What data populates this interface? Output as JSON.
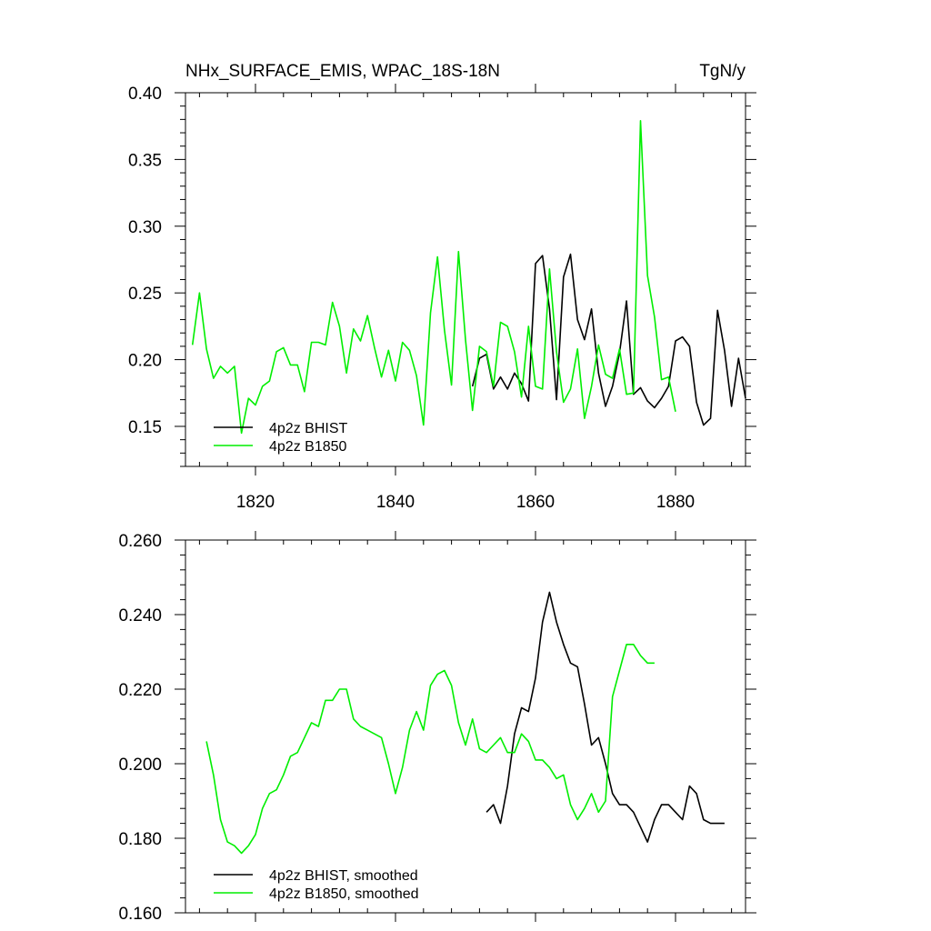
{
  "header": {
    "title": "NHx_SURFACE_EMIS, WPAC_18S-18N",
    "units": "TgN/y"
  },
  "colors": {
    "bhist": "#000000",
    "b1850": "#00ee00"
  },
  "chart_data": [
    {
      "type": "line",
      "title": "NHx_SURFACE_EMIS, WPAC_18S-18N",
      "units": "TgN/y",
      "xlim": [
        1810,
        1890
      ],
      "ylim": [
        0.12,
        0.4
      ],
      "grid": false,
      "legend_position": "bottom-left",
      "x_ticks": [
        1820,
        1840,
        1860,
        1880
      ],
      "y_ticks": [
        0.15,
        0.2,
        0.25,
        0.3,
        0.35,
        0.4
      ],
      "x_tick_labels": [
        "1820",
        "1840",
        "1860",
        "1880"
      ],
      "y_tick_labels": [
        "0.15",
        "0.20",
        "0.25",
        "0.30",
        "0.35",
        "0.40"
      ],
      "series": [
        {
          "name": "4p2z BHIST",
          "color": "#000000",
          "x": [
            1851,
            1852,
            1853,
            1854,
            1855,
            1856,
            1857,
            1858,
            1859,
            1860,
            1861,
            1862,
            1863,
            1864,
            1865,
            1866,
            1867,
            1868,
            1869,
            1870,
            1871,
            1872,
            1873,
            1874,
            1875,
            1876,
            1877,
            1878,
            1879,
            1880,
            1881,
            1882,
            1883,
            1884,
            1885,
            1886,
            1887,
            1888,
            1889,
            1890
          ],
          "y": [
            0.18,
            0.201,
            0.204,
            0.178,
            0.187,
            0.178,
            0.19,
            0.182,
            0.169,
            0.272,
            0.278,
            0.238,
            0.17,
            0.262,
            0.279,
            0.23,
            0.215,
            0.238,
            0.19,
            0.165,
            0.18,
            0.205,
            0.244,
            0.174,
            0.179,
            0.169,
            0.164,
            0.171,
            0.18,
            0.214,
            0.217,
            0.21,
            0.168,
            0.151,
            0.156,
            0.237,
            0.207,
            0.165,
            0.201,
            0.171
          ]
        },
        {
          "name": "4p2z B1850",
          "color": "#00ee00",
          "x": [
            1811,
            1812,
            1813,
            1814,
            1815,
            1816,
            1817,
            1818,
            1819,
            1820,
            1821,
            1822,
            1823,
            1824,
            1825,
            1826,
            1827,
            1828,
            1829,
            1830,
            1831,
            1832,
            1833,
            1834,
            1835,
            1836,
            1837,
            1838,
            1839,
            1840,
            1841,
            1842,
            1843,
            1844,
            1845,
            1846,
            1847,
            1848,
            1849,
            1850,
            1851,
            1852,
            1853,
            1854,
            1855,
            1856,
            1857,
            1858,
            1859,
            1860,
            1861,
            1862,
            1863,
            1864,
            1865,
            1866,
            1867,
            1868,
            1869,
            1870,
            1871,
            1872,
            1873,
            1874,
            1875,
            1876,
            1877,
            1878,
            1879,
            1880
          ],
          "y": [
            0.211,
            0.25,
            0.208,
            0.186,
            0.195,
            0.19,
            0.195,
            0.145,
            0.171,
            0.166,
            0.18,
            0.184,
            0.206,
            0.209,
            0.196,
            0.196,
            0.176,
            0.213,
            0.213,
            0.211,
            0.243,
            0.225,
            0.19,
            0.223,
            0.214,
            0.233,
            0.209,
            0.187,
            0.207,
            0.184,
            0.213,
            0.207,
            0.188,
            0.151,
            0.235,
            0.277,
            0.222,
            0.181,
            0.281,
            0.215,
            0.162,
            0.21,
            0.206,
            0.18,
            0.228,
            0.225,
            0.206,
            0.172,
            0.225,
            0.18,
            0.178,
            0.268,
            0.206,
            0.168,
            0.178,
            0.208,
            0.156,
            0.18,
            0.211,
            0.189,
            0.186,
            0.208,
            0.174,
            0.175,
            0.379,
            0.263,
            0.232,
            0.185,
            0.187,
            0.161
          ]
        }
      ]
    },
    {
      "type": "line",
      "xlim": [
        1810,
        1890
      ],
      "ylim": [
        0.16,
        0.26
      ],
      "grid": false,
      "legend_position": "bottom-left",
      "x_ticks": [
        1820,
        1840,
        1860,
        1880
      ],
      "y_ticks": [
        0.16,
        0.18,
        0.2,
        0.22,
        0.24,
        0.26
      ],
      "y_tick_labels": [
        "0.160",
        "0.180",
        "0.200",
        "0.220",
        "0.240",
        "0.260"
      ],
      "series": [
        {
          "name": "4p2z BHIST, smoothed",
          "color": "#000000",
          "x": [
            1853,
            1854,
            1855,
            1856,
            1857,
            1858,
            1859,
            1860,
            1861,
            1862,
            1863,
            1864,
            1865,
            1866,
            1867,
            1868,
            1869,
            1870,
            1871,
            1872,
            1873,
            1874,
            1875,
            1876,
            1877,
            1878,
            1879,
            1880,
            1881,
            1882,
            1883,
            1884,
            1885,
            1886,
            1887
          ],
          "y": [
            0.187,
            0.189,
            0.184,
            0.194,
            0.208,
            0.215,
            0.214,
            0.223,
            0.238,
            0.246,
            0.238,
            0.232,
            0.227,
            0.226,
            0.216,
            0.205,
            0.207,
            0.2,
            0.192,
            0.189,
            0.189,
            0.187,
            0.183,
            0.179,
            0.185,
            0.189,
            0.189,
            0.187,
            0.185,
            0.194,
            0.192,
            0.185,
            0.184,
            0.184,
            0.184
          ]
        },
        {
          "name": "4p2z B1850, smoothed",
          "color": "#00ee00",
          "x": [
            1813,
            1814,
            1815,
            1816,
            1817,
            1818,
            1819,
            1820,
            1821,
            1822,
            1823,
            1824,
            1825,
            1826,
            1827,
            1828,
            1829,
            1830,
            1831,
            1832,
            1833,
            1834,
            1835,
            1836,
            1837,
            1838,
            1839,
            1840,
            1841,
            1842,
            1843,
            1844,
            1845,
            1846,
            1847,
            1848,
            1849,
            1850,
            1851,
            1852,
            1853,
            1854,
            1855,
            1856,
            1857,
            1858,
            1859,
            1860,
            1861,
            1862,
            1863,
            1864,
            1865,
            1866,
            1867,
            1868,
            1869,
            1870,
            1871,
            1872,
            1873,
            1874,
            1875,
            1876,
            1877
          ],
          "y": [
            0.206,
            0.197,
            0.185,
            0.179,
            0.178,
            0.176,
            0.178,
            0.181,
            0.188,
            0.192,
            0.193,
            0.197,
            0.202,
            0.203,
            0.207,
            0.211,
            0.21,
            0.217,
            0.217,
            0.22,
            0.22,
            0.212,
            0.21,
            0.209,
            0.208,
            0.207,
            0.2,
            0.192,
            0.199,
            0.209,
            0.214,
            0.209,
            0.221,
            0.224,
            0.225,
            0.221,
            0.211,
            0.205,
            0.212,
            0.204,
            0.203,
            0.205,
            0.207,
            0.203,
            0.203,
            0.208,
            0.206,
            0.201,
            0.201,
            0.199,
            0.196,
            0.197,
            0.189,
            0.185,
            0.188,
            0.192,
            0.187,
            0.19,
            0.218,
            0.225,
            0.232,
            0.232,
            0.229,
            0.227,
            0.227
          ]
        }
      ]
    }
  ]
}
